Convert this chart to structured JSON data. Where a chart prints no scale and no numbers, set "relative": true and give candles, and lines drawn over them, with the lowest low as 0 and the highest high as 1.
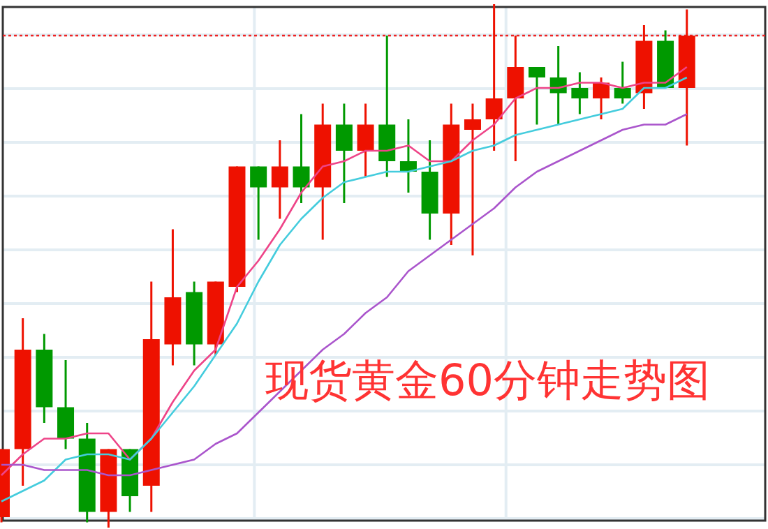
{
  "chart_data": {
    "type": "candlestick",
    "title": "现货黄金60分钟走势图",
    "relative": true,
    "grid": true,
    "categories": [
      null,
      null,
      null,
      null,
      null,
      null,
      null,
      null,
      null,
      null,
      null,
      null,
      null,
      null,
      null,
      null,
      null,
      null,
      null,
      null,
      null,
      null,
      null,
      null,
      null,
      null,
      null,
      null,
      null,
      null,
      null,
      null,
      null
    ],
    "ohlc": [
      [
        0.02,
        0.15,
        0.01,
        0.15
      ],
      [
        0.15,
        0.4,
        0.08,
        0.34
      ],
      [
        0.34,
        0.37,
        0.2,
        0.23
      ],
      [
        0.23,
        0.32,
        0.15,
        0.17
      ],
      [
        0.17,
        0.2,
        0.01,
        0.03
      ],
      [
        0.03,
        0.15,
        0,
        0.15
      ],
      [
        0.15,
        0.15,
        0.03,
        0.06
      ],
      [
        0.08,
        0.47,
        0.03,
        0.36
      ],
      [
        0.35,
        0.57,
        0.31,
        0.44
      ],
      [
        0.45,
        0.47,
        0.31,
        0.35
      ],
      [
        0.35,
        0.47,
        0.33,
        0.47
      ],
      [
        0.46,
        0.69,
        0.45,
        0.69
      ],
      [
        0.69,
        0.69,
        0.55,
        0.65
      ],
      [
        0.65,
        0.74,
        0.59,
        0.69
      ],
      [
        0.69,
        0.79,
        0.62,
        0.65
      ],
      [
        0.65,
        0.81,
        0.55,
        0.77
      ],
      [
        0.77,
        0.81,
        0.62,
        0.72
      ],
      [
        0.72,
        0.81,
        0.67,
        0.77
      ],
      [
        0.77,
        0.94,
        0.67,
        0.7
      ],
      [
        0.7,
        0.78,
        0.64,
        0.68
      ],
      [
        0.68,
        0.74,
        0.55,
        0.6
      ],
      [
        0.6,
        0.81,
        0.54,
        0.77
      ],
      [
        0.76,
        0.81,
        0.52,
        0.78
      ],
      [
        0.78,
        1,
        0.72,
        0.82
      ],
      [
        0.82,
        0.94,
        0.7,
        0.88
      ],
      [
        0.88,
        0.88,
        0.77,
        0.86
      ],
      [
        0.86,
        0.92,
        0.77,
        0.83
      ],
      [
        0.84,
        0.87,
        0.79,
        0.82
      ],
      [
        0.82,
        0.86,
        0.78,
        0.85
      ],
      [
        0.84,
        0.89,
        0.81,
        0.82
      ],
      [
        0.83,
        0.96,
        0.8,
        0.93
      ],
      [
        0.93,
        0.95,
        0.84,
        0.84
      ],
      [
        0.84,
        0.99,
        0.73,
        0.94
      ]
    ],
    "colors": [
      "#ee1100",
      "#ee1100",
      "#009900",
      "#009900",
      "#009900",
      "#ee1100",
      "#009900",
      "#ee1100",
      "#ee1100",
      "#009900",
      "#ee1100",
      "#ee1100",
      "#009900",
      "#ee1100",
      "#009900",
      "#ee1100",
      "#009900",
      "#ee1100",
      "#009900",
      "#009900",
      "#009900",
      "#ee1100",
      "#ee1100",
      "#ee1100",
      "#ee1100",
      "#009900",
      "#009900",
      "#009900",
      "#ee1100",
      "#009900",
      "#ee1100",
      "#009900",
      "#ee1100"
    ],
    "series": [
      {
        "type": "line",
        "color": "#ee4488",
        "values": [
          0.1,
          0.14,
          0.17,
          0.17,
          0.18,
          0.18,
          0.13,
          0.17,
          0.24,
          0.3,
          0.34,
          0.46,
          0.51,
          0.57,
          0.64,
          0.69,
          0.7,
          0.72,
          0.72,
          0.73,
          0.7,
          0.7,
          0.74,
          0.77,
          0.82,
          0.84,
          0.84,
          0.85,
          0.85,
          0.84,
          0.85,
          0.85,
          0.88
        ]
      },
      {
        "type": "line",
        "color": "#44ccdd",
        "values": [
          0.05,
          0.07,
          0.09,
          0.13,
          0.14,
          0.14,
          0.13,
          0.17,
          0.22,
          0.27,
          0.33,
          0.39,
          0.47,
          0.54,
          0.59,
          0.63,
          0.66,
          0.67,
          0.68,
          0.68,
          0.69,
          0.7,
          0.72,
          0.73,
          0.75,
          0.76,
          0.77,
          0.78,
          0.79,
          0.8,
          0.84,
          0.84,
          0.86
        ]
      },
      {
        "type": "line",
        "color": "#aa55cc",
        "values": [
          0.12,
          0.12,
          0.11,
          0.11,
          0.11,
          0.1,
          0.1,
          0.11,
          0.12,
          0.13,
          0.16,
          0.18,
          0.22,
          0.26,
          0.3,
          0.34,
          0.37,
          0.41,
          0.44,
          0.49,
          0.52,
          0.55,
          0.58,
          0.61,
          0.65,
          0.68,
          0.7,
          0.72,
          0.74,
          0.76,
          0.77,
          0.77,
          0.79
        ]
      }
    ],
    "ref_lines": [
      {
        "axis": "y",
        "value": 0.94,
        "color": "#ee2222",
        "line_style": "dotted"
      }
    ]
  }
}
